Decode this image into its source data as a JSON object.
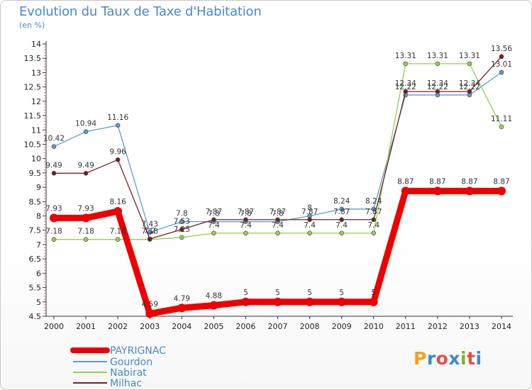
{
  "chart_data": {
    "type": "line",
    "title": "Evolution du Taux de Taxe d'Habitation",
    "subtitle": "(en %)",
    "x": [
      "2000",
      "2001",
      "2002",
      "2003",
      "2004",
      "2005",
      "2006",
      "2007",
      "2008",
      "2009",
      "2010",
      "2011",
      "2012",
      "2013",
      "2014"
    ],
    "ylim": [
      4.5,
      14
    ],
    "yticks": [
      "4.5",
      "5",
      "5.5",
      "6",
      "6.5",
      "7",
      "7.5",
      "8",
      "8.5",
      "9",
      "9.5",
      "10",
      "10.5",
      "11",
      "11.5",
      "12",
      "12.5",
      "13",
      "13.5",
      "14"
    ],
    "grid": false,
    "legend_position": "bottom-left",
    "series": [
      {
        "name": "PAYRIGNAC",
        "color": "#ee0000",
        "values": [
          7.93,
          7.93,
          8.16,
          4.59,
          4.79,
          4.88,
          5,
          5,
          5,
          5,
          5,
          8.87,
          8.87,
          8.87,
          8.87
        ],
        "labels": [
          "7.93",
          "7.93",
          "8.16",
          "4.59",
          "4.79",
          "4.88",
          "5",
          "5",
          "5",
          "5",
          "5",
          "8.87",
          "8.87",
          "8.87",
          "8.87"
        ]
      },
      {
        "name": "Gourdon",
        "color": "#5b9bd5",
        "values": [
          10.42,
          10.94,
          11.16,
          7.43,
          7.8,
          7.8,
          7.8,
          7.8,
          8,
          8.24,
          8.24,
          12.22,
          12.22,
          12.22,
          13.01
        ],
        "labels": [
          "10.42",
          "10.94",
          "11.16",
          "7.43",
          "7.8",
          "7.8",
          "7.8",
          "7.8",
          "8",
          "8.24",
          "8.24",
          "12.22",
          "12.22",
          "12.22",
          "13.01"
        ]
      },
      {
        "name": "Nabirat",
        "color": "#92d050",
        "values": [
          7.18,
          7.18,
          7.18,
          7.18,
          7.25,
          7.4,
          7.4,
          7.4,
          7.4,
          7.4,
          7.4,
          13.31,
          13.31,
          13.31,
          11.11
        ],
        "labels": [
          "7.18",
          "7.18",
          "7.18",
          "7.18",
          "7.25",
          "7.4",
          "7.4",
          "7.4",
          "7.4",
          "7.4",
          "7.4",
          "13.31",
          "13.31",
          "13.31",
          "11.11"
        ]
      },
      {
        "name": "Milhac",
        "color": "#7b2020",
        "values": [
          9.49,
          9.49,
          9.96,
          7.2,
          7.53,
          7.87,
          7.87,
          7.87,
          7.87,
          7.87,
          7.87,
          12.34,
          12.34,
          12.34,
          13.56
        ],
        "labels": [
          "9.49",
          "9.49",
          "9.96",
          "7.2",
          "7.53",
          "7.87",
          "7.87",
          "7.87",
          "7.87",
          "7.87",
          "7.87",
          "12.34",
          "12.34",
          "12.34",
          "13.56"
        ]
      }
    ]
  },
  "logo": {
    "letters": [
      "P",
      "r",
      "o",
      "x",
      "i",
      "t",
      "i"
    ],
    "colors": [
      "#f0a020",
      "#3a8ad0",
      "#e05050",
      "#3a8ad0",
      "#80b030",
      "#e05050",
      "#3a8ad0"
    ]
  }
}
